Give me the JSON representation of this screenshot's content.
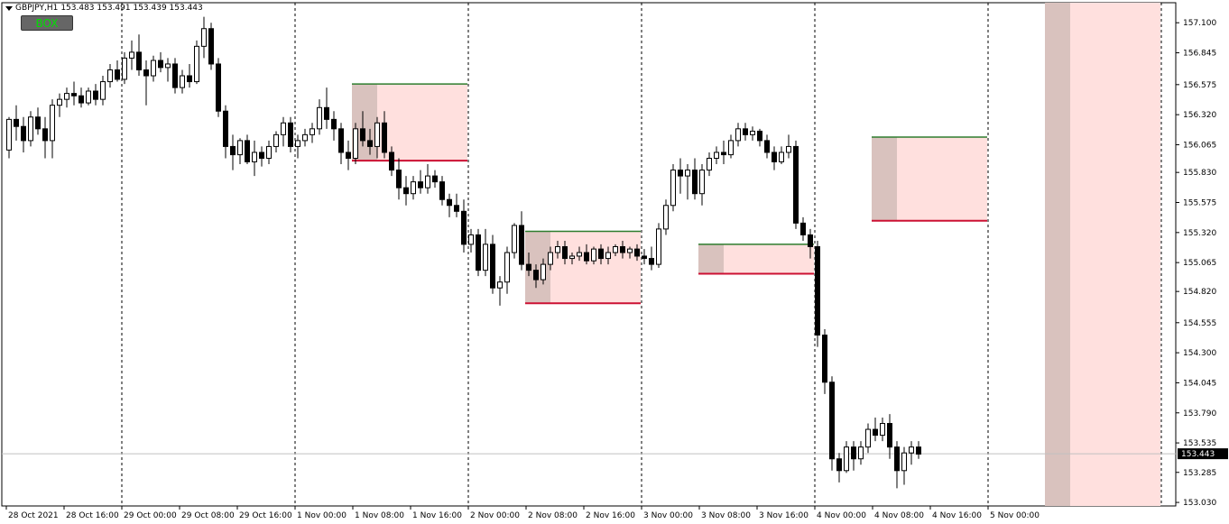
{
  "window": {
    "symbol_label": "GBPJPY,H1",
    "ohlc_label": "153.483 153.491 153.439 153.443",
    "box_button": "BOX"
  },
  "chart_data": {
    "type": "candlestick",
    "symbol": "GBPJPY",
    "timeframe": "H1",
    "ylim": [
      153.0,
      157.27
    ],
    "grid": false,
    "current_price": 153.443,
    "current_price_label": "153.443",
    "y_ticks": [
      "157.100",
      "156.845",
      "156.575",
      "156.320",
      "156.065",
      "155.830",
      "155.575",
      "155.320",
      "155.065",
      "154.820",
      "154.555",
      "154.300",
      "154.045",
      "153.790",
      "153.535",
      "153.285",
      "153.030"
    ],
    "x_labels": [
      {
        "label": "28 Oct 2021",
        "index": 0
      },
      {
        "label": "28 Oct 16:00",
        "index": 8
      },
      {
        "label": "29 Oct 00:00",
        "index": 16
      },
      {
        "label": "29 Oct 08:00",
        "index": 24
      },
      {
        "label": "29 Oct 16:00",
        "index": 32
      },
      {
        "label": "1 Nov 00:00",
        "index": 40
      },
      {
        "label": "1 Nov 08:00",
        "index": 48
      },
      {
        "label": "1 Nov 16:00",
        "index": 56
      },
      {
        "label": "2 Nov 00:00",
        "index": 64
      },
      {
        "label": "2 Nov 08:00",
        "index": 72
      },
      {
        "label": "2 Nov 16:00",
        "index": 80
      },
      {
        "label": "3 Nov 00:00",
        "index": 88
      },
      {
        "label": "3 Nov 08:00",
        "index": 96
      },
      {
        "label": "3 Nov 16:00",
        "index": 104
      },
      {
        "label": "4 Nov 00:00",
        "index": 112
      },
      {
        "label": "4 Nov 08:00",
        "index": 120
      },
      {
        "label": "4 Nov 16:00",
        "index": 128
      },
      {
        "label": "5 Nov 00:00",
        "index": 136
      }
    ],
    "day_separators": [
      16,
      40,
      64,
      88,
      112,
      136,
      160
    ],
    "candles": [
      [
        156.02,
        156.3,
        155.95,
        156.28
      ],
      [
        156.28,
        156.4,
        156.1,
        156.22
      ],
      [
        156.22,
        156.3,
        156.0,
        156.1
      ],
      [
        156.1,
        156.35,
        156.05,
        156.3
      ],
      [
        156.3,
        156.38,
        156.15,
        156.2
      ],
      [
        156.2,
        156.3,
        155.95,
        156.1
      ],
      [
        156.1,
        156.45,
        155.95,
        156.4
      ],
      [
        156.4,
        156.5,
        156.3,
        156.45
      ],
      [
        156.45,
        156.55,
        156.38,
        156.5
      ],
      [
        156.5,
        156.6,
        156.4,
        156.48
      ],
      [
        156.48,
        156.55,
        156.38,
        156.42
      ],
      [
        156.42,
        156.55,
        156.4,
        156.52
      ],
      [
        156.52,
        156.58,
        156.4,
        156.45
      ],
      [
        156.45,
        156.65,
        156.4,
        156.6
      ],
      [
        156.6,
        156.75,
        156.55,
        156.7
      ],
      [
        156.7,
        156.78,
        156.6,
        156.62
      ],
      [
        156.62,
        156.85,
        156.58,
        156.8
      ],
      [
        156.8,
        156.95,
        156.7,
        156.85
      ],
      [
        156.85,
        157.0,
        156.65,
        156.7
      ],
      [
        156.7,
        156.78,
        156.4,
        156.65
      ],
      [
        156.65,
        156.82,
        156.6,
        156.78
      ],
      [
        156.78,
        156.85,
        156.68,
        156.72
      ],
      [
        156.72,
        156.8,
        156.6,
        156.75
      ],
      [
        156.75,
        156.8,
        156.5,
        156.55
      ],
      [
        156.55,
        156.7,
        156.5,
        156.65
      ],
      [
        156.65,
        156.75,
        156.55,
        156.6
      ],
      [
        156.6,
        156.95,
        156.58,
        156.9
      ],
      [
        156.9,
        157.15,
        156.8,
        157.05
      ],
      [
        157.05,
        157.1,
        156.7,
        156.75
      ],
      [
        156.75,
        156.8,
        156.3,
        156.35
      ],
      [
        156.35,
        156.4,
        155.95,
        156.05
      ],
      [
        156.05,
        156.15,
        155.85,
        155.98
      ],
      [
        155.98,
        156.12,
        155.9,
        156.1
      ],
      [
        156.1,
        156.15,
        155.9,
        155.92
      ],
      [
        155.92,
        156.1,
        155.8,
        156.0
      ],
      [
        156.0,
        156.05,
        155.88,
        155.95
      ],
      [
        155.95,
        156.1,
        155.9,
        156.05
      ],
      [
        156.05,
        156.18,
        156.0,
        156.15
      ],
      [
        156.15,
        156.3,
        156.05,
        156.25
      ],
      [
        156.25,
        156.3,
        156.0,
        156.05
      ],
      [
        156.05,
        156.15,
        155.95,
        156.1
      ],
      [
        156.1,
        156.2,
        156.05,
        156.15
      ],
      [
        156.15,
        156.25,
        156.08,
        156.2
      ],
      [
        156.2,
        156.45,
        156.15,
        156.38
      ],
      [
        156.38,
        156.55,
        156.2,
        156.28
      ],
      [
        156.28,
        156.35,
        156.1,
        156.2
      ],
      [
        156.2,
        156.25,
        155.9,
        156.0
      ],
      [
        156.0,
        156.1,
        155.85,
        155.95
      ],
      [
        155.95,
        156.25,
        155.9,
        156.2
      ],
      [
        156.2,
        156.35,
        156.05,
        156.1
      ],
      [
        156.1,
        156.2,
        155.98,
        156.05
      ],
      [
        156.05,
        156.3,
        155.95,
        156.25
      ],
      [
        156.25,
        156.35,
        155.95,
        156.0
      ],
      [
        156.0,
        156.05,
        155.8,
        155.85
      ],
      [
        155.85,
        155.95,
        155.6,
        155.7
      ],
      [
        155.7,
        155.8,
        155.55,
        155.65
      ],
      [
        155.65,
        155.8,
        155.6,
        155.75
      ],
      [
        155.75,
        155.85,
        155.65,
        155.7
      ],
      [
        155.7,
        155.9,
        155.65,
        155.8
      ],
      [
        155.8,
        155.85,
        155.7,
        155.75
      ],
      [
        155.75,
        155.8,
        155.55,
        155.6
      ],
      [
        155.6,
        155.65,
        155.45,
        155.55
      ],
      [
        155.55,
        155.65,
        155.45,
        155.5
      ],
      [
        155.5,
        155.6,
        155.15,
        155.22
      ],
      [
        155.22,
        155.35,
        155.15,
        155.3
      ],
      [
        155.3,
        155.35,
        154.95,
        155.0
      ],
      [
        155.0,
        155.35,
        154.95,
        155.22
      ],
      [
        155.22,
        155.3,
        154.8,
        154.85
      ],
      [
        154.85,
        154.95,
        154.7,
        154.9
      ],
      [
        154.9,
        155.2,
        154.8,
        155.15
      ],
      [
        155.15,
        155.4,
        155.1,
        155.38
      ],
      [
        155.38,
        155.5,
        155.0,
        155.05
      ],
      [
        155.05,
        155.15,
        154.95,
        155.0
      ],
      [
        155.0,
        155.05,
        154.85,
        154.92
      ],
      [
        154.92,
        155.1,
        154.88,
        155.05
      ],
      [
        155.05,
        155.2,
        155.0,
        155.15
      ],
      [
        155.15,
        155.25,
        155.1,
        155.2
      ],
      [
        155.2,
        155.25,
        155.05,
        155.1
      ],
      [
        155.1,
        155.15,
        155.05,
        155.12
      ],
      [
        155.12,
        155.2,
        155.08,
        155.15
      ],
      [
        155.15,
        155.22,
        155.05,
        155.08
      ],
      [
        155.08,
        155.2,
        155.05,
        155.18
      ],
      [
        155.18,
        155.22,
        155.05,
        155.1
      ],
      [
        155.1,
        155.2,
        155.05,
        155.15
      ],
      [
        155.15,
        155.22,
        155.12,
        155.2
      ],
      [
        155.2,
        155.25,
        155.1,
        155.15
      ],
      [
        155.15,
        155.2,
        155.1,
        155.18
      ],
      [
        155.18,
        155.22,
        155.08,
        155.12
      ],
      [
        155.12,
        155.18,
        155.05,
        155.1
      ],
      [
        155.1,
        155.2,
        155.0,
        155.05
      ],
      [
        155.05,
        155.4,
        155.02,
        155.35
      ],
      [
        155.35,
        155.6,
        155.3,
        155.55
      ],
      [
        155.55,
        155.9,
        155.5,
        155.85
      ],
      [
        155.85,
        155.95,
        155.65,
        155.8
      ],
      [
        155.8,
        155.9,
        155.6,
        155.85
      ],
      [
        155.85,
        155.95,
        155.6,
        155.65
      ],
      [
        155.65,
        155.9,
        155.55,
        155.85
      ],
      [
        155.85,
        156.0,
        155.8,
        155.95
      ],
      [
        155.95,
        156.05,
        155.9,
        156.0
      ],
      [
        156.0,
        156.1,
        155.9,
        155.98
      ],
      [
        155.98,
        156.15,
        155.95,
        156.1
      ],
      [
        156.1,
        156.25,
        156.05,
        156.2
      ],
      [
        156.2,
        156.25,
        156.1,
        156.15
      ],
      [
        156.15,
        156.22,
        156.1,
        156.18
      ],
      [
        156.18,
        156.2,
        156.05,
        156.1
      ],
      [
        156.1,
        156.15,
        155.95,
        156.0
      ],
      [
        156.0,
        156.05,
        155.85,
        155.92
      ],
      [
        155.92,
        156.05,
        155.9,
        156.0
      ],
      [
        156.0,
        156.15,
        155.95,
        156.05
      ],
      [
        156.05,
        156.1,
        155.35,
        155.4
      ],
      [
        155.4,
        155.45,
        155.25,
        155.3
      ],
      [
        155.3,
        155.35,
        155.1,
        155.2
      ],
      [
        155.2,
        155.25,
        154.35,
        154.45
      ],
      [
        154.45,
        154.5,
        153.95,
        154.05
      ],
      [
        154.05,
        154.1,
        153.3,
        153.4
      ],
      [
        153.4,
        153.45,
        153.2,
        153.3
      ],
      [
        153.3,
        153.55,
        153.28,
        153.5
      ],
      [
        153.5,
        153.55,
        153.3,
        153.4
      ],
      [
        153.4,
        153.55,
        153.35,
        153.5
      ],
      [
        153.5,
        153.7,
        153.45,
        153.65
      ],
      [
        153.65,
        153.75,
        153.55,
        153.6
      ],
      [
        153.6,
        153.75,
        153.55,
        153.7
      ],
      [
        153.7,
        153.78,
        153.4,
        153.5
      ],
      [
        153.5,
        153.55,
        153.15,
        153.3
      ],
      [
        153.3,
        153.5,
        153.18,
        153.45
      ],
      [
        153.45,
        153.55,
        153.35,
        153.5
      ],
      [
        153.5,
        153.55,
        153.4,
        153.44
      ]
    ],
    "boxes": [
      {
        "start": 48,
        "shade_end": 51,
        "end": 63,
        "high": 156.58,
        "low": 155.93
      },
      {
        "start": 72,
        "shade_end": 75,
        "end": 87,
        "high": 155.33,
        "low": 154.72
      },
      {
        "start": 96,
        "shade_end": 99,
        "end": 111,
        "high": 155.22,
        "low": 154.97
      },
      {
        "start": 120,
        "shade_end": 123,
        "end": 135,
        "high": 156.13,
        "low": 155.42
      },
      {
        "start": 144,
        "shade_end": 147,
        "end": 159,
        "high": 157.27,
        "low": 153.0
      }
    ],
    "colors": {
      "bull_fill": "#ffffff",
      "bear_fill": "#000000",
      "candle_outline": "#000000",
      "box_shade": "#d9c2be",
      "box_fill": "#ffe0de",
      "box_high_line": "#2e7d2e",
      "box_low_line": "#cc1133",
      "price_line": "#c0c0c0"
    }
  }
}
